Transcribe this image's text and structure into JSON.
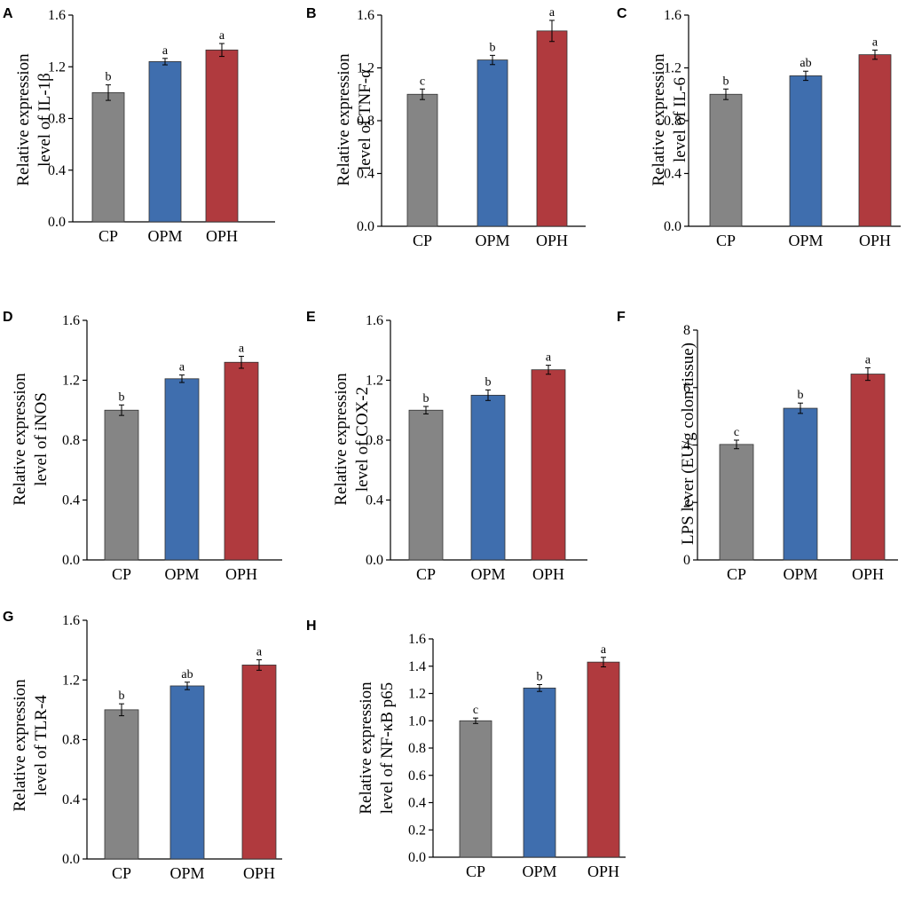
{
  "chart_data": [
    {
      "panel": "A",
      "type": "bar",
      "categories": [
        "CP",
        "OPM",
        "OPH"
      ],
      "values": [
        1.0,
        1.24,
        1.33
      ],
      "errors": [
        0.06,
        0.025,
        0.05
      ],
      "significance": [
        "b",
        "a",
        "a"
      ],
      "ylim": [
        0,
        1.6
      ],
      "yticks": [
        "0.0",
        "0.4",
        "0.8",
        "1.2",
        "1.6"
      ],
      "ylabel_lines": [
        "Relative expression",
        "level of IL-1β"
      ],
      "colors": [
        "#858585",
        "#3f6eae",
        "#b03a3e"
      ]
    },
    {
      "panel": "B",
      "type": "bar",
      "categories": [
        "CP",
        "OPM",
        "OPH"
      ],
      "values": [
        1.0,
        1.26,
        1.48
      ],
      "errors": [
        0.04,
        0.035,
        0.08
      ],
      "significance": [
        "c",
        "b",
        "a"
      ],
      "ylim": [
        0,
        1.6
      ],
      "yticks": [
        "0.0",
        "0.4",
        "0.8",
        "1.2",
        "1.6"
      ],
      "ylabel_lines": [
        "Relative expression",
        "level of TNF-α"
      ],
      "colors": [
        "#858585",
        "#3f6eae",
        "#b03a3e"
      ]
    },
    {
      "panel": "C",
      "type": "bar",
      "categories": [
        "CP",
        "OPM",
        "OPH"
      ],
      "values": [
        1.0,
        1.14,
        1.3
      ],
      "errors": [
        0.04,
        0.035,
        0.035
      ],
      "significance": [
        "b",
        "ab",
        "a"
      ],
      "ylim": [
        0,
        1.6
      ],
      "yticks": [
        "0.0",
        "0.4",
        "0.8",
        "1.2",
        "1.6"
      ],
      "ylabel_lines": [
        "Relative expression",
        "level of IL-6"
      ],
      "colors": [
        "#858585",
        "#3f6eae",
        "#b03a3e"
      ]
    },
    {
      "panel": "D",
      "type": "bar",
      "categories": [
        "CP",
        "OPM",
        "OPH"
      ],
      "values": [
        1.0,
        1.21,
        1.32
      ],
      "errors": [
        0.035,
        0.025,
        0.04
      ],
      "significance": [
        "b",
        "a",
        "a"
      ],
      "ylim": [
        0,
        1.6
      ],
      "yticks": [
        "0.0",
        "0.4",
        "0.8",
        "1.2",
        "1.6"
      ],
      "ylabel_lines": [
        "Relative expression",
        "level of iNOS"
      ],
      "colors": [
        "#858585",
        "#3f6eae",
        "#b03a3e"
      ]
    },
    {
      "panel": "E",
      "type": "bar",
      "categories": [
        "CP",
        "OPM",
        "OPH"
      ],
      "values": [
        1.0,
        1.1,
        1.27
      ],
      "errors": [
        0.025,
        0.035,
        0.03
      ],
      "significance": [
        "b",
        "b",
        "a"
      ],
      "ylim": [
        0,
        1.6
      ],
      "yticks": [
        "0.0",
        "0.4",
        "0.8",
        "1.2",
        "1.6"
      ],
      "ylabel_lines": [
        "Relative expression",
        "level of COX-2"
      ],
      "colors": [
        "#858585",
        "#3f6eae",
        "#b03a3e"
      ]
    },
    {
      "panel": "F",
      "type": "bar",
      "categories": [
        "CP",
        "OPM",
        "OPH"
      ],
      "values": [
        4.02,
        5.28,
        6.47
      ],
      "errors": [
        0.15,
        0.18,
        0.22
      ],
      "significance": [
        "c",
        "b",
        "a"
      ],
      "ylim": [
        0,
        8
      ],
      "yticks": [
        "0",
        "2",
        "4",
        "6",
        "8"
      ],
      "ylabel_lines": [
        "LPS lever (EU/g colon tissue)"
      ],
      "colors": [
        "#858585",
        "#3f6eae",
        "#b03a3e"
      ]
    },
    {
      "panel": "G",
      "type": "bar",
      "categories": [
        "CP",
        "OPM",
        "OPH"
      ],
      "values": [
        1.0,
        1.16,
        1.3
      ],
      "errors": [
        0.04,
        0.025,
        0.035
      ],
      "significance": [
        "b",
        "ab",
        "a"
      ],
      "ylim": [
        0,
        1.6
      ],
      "yticks": [
        "0.0",
        "0.4",
        "0.8",
        "1.2",
        "1.6"
      ],
      "ylabel_lines": [
        "Relative expression",
        "level of TLR-4"
      ],
      "colors": [
        "#858585",
        "#3f6eae",
        "#b03a3e"
      ]
    },
    {
      "panel": "H",
      "type": "bar",
      "categories": [
        "CP",
        "OPM",
        "OPH"
      ],
      "values": [
        1.0,
        1.24,
        1.43
      ],
      "errors": [
        0.02,
        0.025,
        0.035
      ],
      "significance": [
        "c",
        "b",
        "a"
      ],
      "ylim": [
        0,
        1.6
      ],
      "yticks": [
        "0.0",
        "0.2",
        "0.4",
        "0.6",
        "0.8",
        "1.0",
        "1.2",
        "1.4",
        "1.6"
      ],
      "ylabel_lines": [
        "Relative expression",
        "level of NF-κB p65"
      ],
      "colors": [
        "#858585",
        "#3f6eae",
        "#b03a3e"
      ]
    }
  ]
}
